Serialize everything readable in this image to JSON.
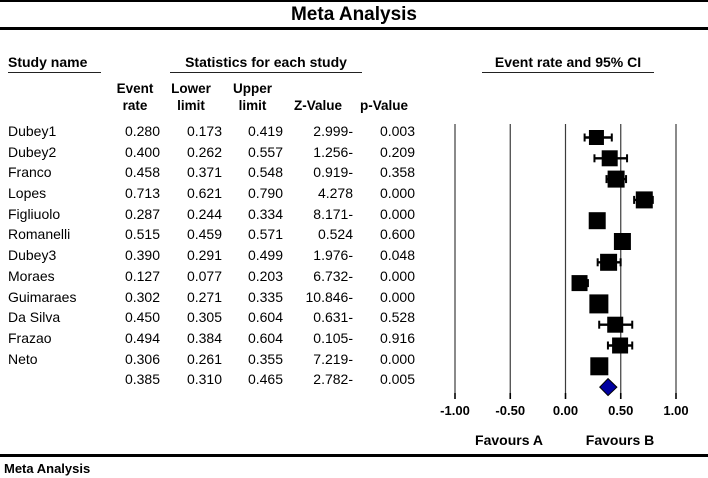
{
  "title": "Meta Analysis",
  "footer": "Meta Analysis",
  "table": {
    "group_headers": {
      "study": "Study name",
      "stats": "Statistics for each study",
      "plot": "Event rate and 95% CI"
    },
    "columns_lines": [
      [
        "Event",
        "rate"
      ],
      [
        "Lower",
        "limit"
      ],
      [
        "Upper",
        "limit"
      ],
      [
        "Z-Value"
      ],
      [
        "p-Value"
      ]
    ],
    "rows": [
      {
        "study": "Dubey1",
        "event_rate": "0.280",
        "lower": "0.173",
        "upper": "0.419",
        "z": "2.999-",
        "p": "0.003"
      },
      {
        "study": "Dubey2",
        "event_rate": "0.400",
        "lower": "0.262",
        "upper": "0.557",
        "z": "1.256-",
        "p": "0.209"
      },
      {
        "study": "Franco",
        "event_rate": "0.458",
        "lower": "0.371",
        "upper": "0.548",
        "z": "0.919-",
        "p": "0.358"
      },
      {
        "study": "Lopes",
        "event_rate": "0.713",
        "lower": "0.621",
        "upper": "0.790",
        "z": "4.278",
        "p": "0.000"
      },
      {
        "study": "Figliuolo",
        "event_rate": "0.287",
        "lower": "0.244",
        "upper": "0.334",
        "z": "8.171-",
        "p": "0.000"
      },
      {
        "study": "Romanelli",
        "event_rate": "0.515",
        "lower": "0.459",
        "upper": "0.571",
        "z": "0.524",
        "p": "0.600"
      },
      {
        "study": "Dubey3",
        "event_rate": "0.390",
        "lower": "0.291",
        "upper": "0.499",
        "z": "1.976-",
        "p": "0.048"
      },
      {
        "study": "Moraes",
        "event_rate": "0.127",
        "lower": "0.077",
        "upper": "0.203",
        "z": "6.732-",
        "p": "0.000"
      },
      {
        "study": "Guimaraes",
        "event_rate": "0.302",
        "lower": "0.271",
        "upper": "0.335",
        "z": "10.846-",
        "p": "0.000"
      },
      {
        "study": "Da Silva",
        "event_rate": "0.450",
        "lower": "0.305",
        "upper": "0.604",
        "z": "0.631-",
        "p": "0.528"
      },
      {
        "study": "Frazao",
        "event_rate": "0.494",
        "lower": "0.384",
        "upper": "0.604",
        "z": "0.105-",
        "p": "0.916"
      },
      {
        "study": "Neto",
        "event_rate": "0.306",
        "lower": "0.261",
        "upper": "0.355",
        "z": "7.219-",
        "p": "0.000"
      },
      {
        "study": "",
        "event_rate": "0.385",
        "lower": "0.310",
        "upper": "0.465",
        "z": "2.782-",
        "p": "0.005"
      }
    ]
  },
  "chart_data": {
    "type": "forest",
    "title": "Meta Analysis",
    "plot_header": "Event rate and 95% CI",
    "xlim": [
      -1,
      1
    ],
    "grid": true,
    "x_ticks": [
      -1.0,
      -0.5,
      0.0,
      0.5,
      1.0
    ],
    "x_tick_labels": [
      "-1.00",
      "-0.50",
      "0.00",
      "0.50",
      "1.00"
    ],
    "favours_a": "Favours A",
    "favours_b": "Favours B",
    "marker_color": "#000000",
    "summary_color": "#0000A0",
    "studies": [
      {
        "name": "Dubey1",
        "event_rate": 0.28,
        "lower": 0.173,
        "upper": 0.419,
        "z": -2.999,
        "p": 0.003,
        "size": 15
      },
      {
        "name": "Dubey2",
        "event_rate": 0.4,
        "lower": 0.262,
        "upper": 0.557,
        "z": -1.256,
        "p": 0.209,
        "size": 16
      },
      {
        "name": "Franco",
        "event_rate": 0.458,
        "lower": 0.371,
        "upper": 0.548,
        "z": -0.919,
        "p": 0.358,
        "size": 17
      },
      {
        "name": "Lopes",
        "event_rate": 0.713,
        "lower": 0.621,
        "upper": 0.79,
        "z": 4.278,
        "p": 0.0,
        "size": 17
      },
      {
        "name": "Figliuolo",
        "event_rate": 0.287,
        "lower": 0.244,
        "upper": 0.334,
        "z": -8.171,
        "p": 0.0,
        "size": 17
      },
      {
        "name": "Romanelli",
        "event_rate": 0.515,
        "lower": 0.459,
        "upper": 0.571,
        "z": 0.524,
        "p": 0.6,
        "size": 17
      },
      {
        "name": "Dubey3",
        "event_rate": 0.39,
        "lower": 0.291,
        "upper": 0.499,
        "z": -1.976,
        "p": 0.048,
        "size": 17
      },
      {
        "name": "Moraes",
        "event_rate": 0.127,
        "lower": 0.077,
        "upper": 0.203,
        "z": -6.732,
        "p": 0.0,
        "size": 16
      },
      {
        "name": "Guimaraes",
        "event_rate": 0.302,
        "lower": 0.271,
        "upper": 0.335,
        "z": -10.846,
        "p": 0.0,
        "size": 19
      },
      {
        "name": "Da Silva",
        "event_rate": 0.45,
        "lower": 0.305,
        "upper": 0.604,
        "z": -0.631,
        "p": 0.528,
        "size": 16
      },
      {
        "name": "Frazao",
        "event_rate": 0.494,
        "lower": 0.384,
        "upper": 0.604,
        "z": -0.105,
        "p": 0.916,
        "size": 16
      },
      {
        "name": "Neto",
        "event_rate": 0.306,
        "lower": 0.261,
        "upper": 0.355,
        "z": -7.219,
        "p": 0.0,
        "size": 18
      }
    ],
    "summary": {
      "event_rate": 0.385,
      "lower": 0.31,
      "upper": 0.465,
      "z": -2.782,
      "p": 0.005
    }
  }
}
